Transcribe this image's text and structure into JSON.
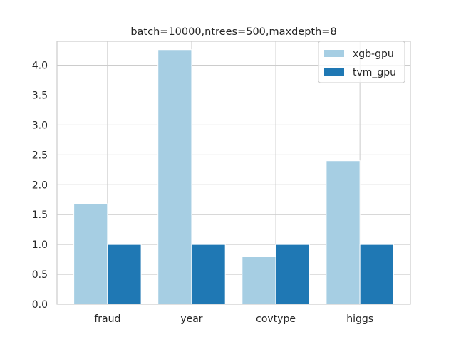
{
  "chart_data": {
    "type": "bar",
    "title": "batch=10000,ntrees=500,maxdepth=8",
    "xlabel": "",
    "ylabel": "",
    "categories": [
      "fraud",
      "year",
      "covtype",
      "higgs"
    ],
    "series": [
      {
        "name": "xgb-gpu",
        "values": [
          1.68,
          4.26,
          0.8,
          2.4
        ],
        "color": "#a6cee3"
      },
      {
        "name": "tvm_gpu",
        "values": [
          1.0,
          1.0,
          1.0,
          1.0
        ],
        "color": "#1f78b4"
      }
    ],
    "ylim": [
      0,
      4.4
    ],
    "yticks": [
      "0.0",
      "0.5",
      "1.0",
      "1.5",
      "2.0",
      "2.5",
      "3.0",
      "3.5",
      "4.0"
    ],
    "grid": true,
    "legend_position": "top-right",
    "colors": {
      "grid": "#cccccc",
      "axes_edge": "#cccccc",
      "background": "#ffffff"
    }
  }
}
